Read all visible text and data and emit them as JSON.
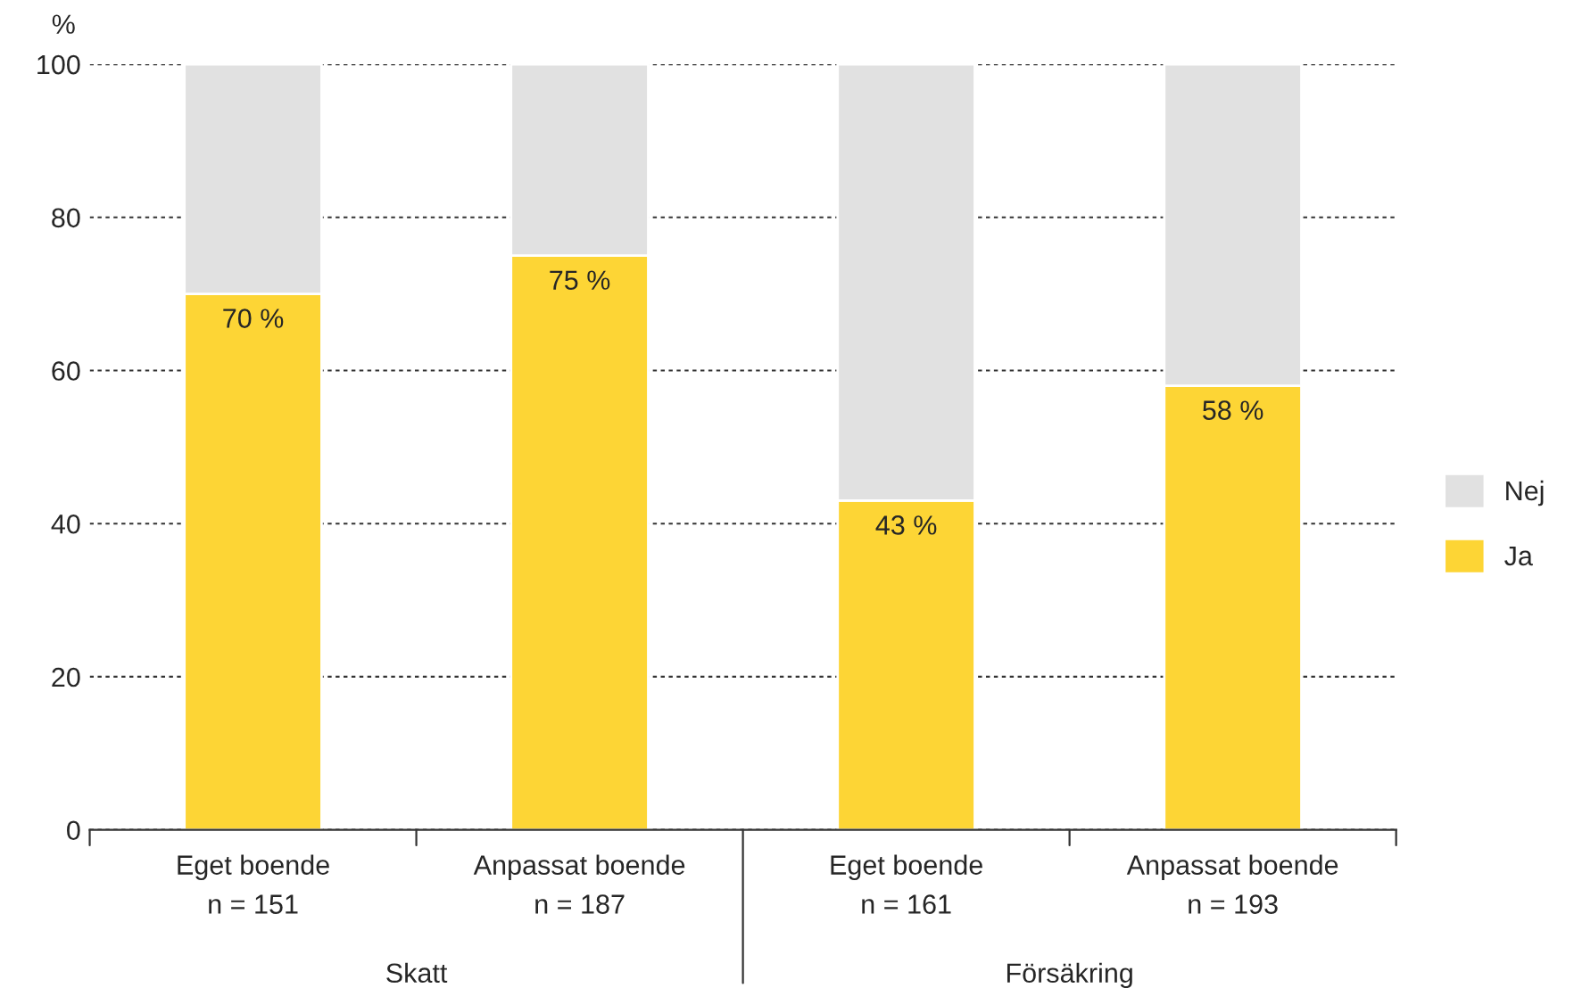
{
  "chart_data": {
    "type": "bar",
    "stacked": true,
    "ylabel": "%",
    "categories": [
      "Eget boende\nn = 151",
      "Anpassat boende\nn = 187",
      "Eget boende\nn = 161",
      "Anpassat boende\nn = 193"
    ],
    "series": [
      {
        "name": "Ja",
        "color": "#fdd535",
        "values": [
          70,
          75,
          43,
          58
        ],
        "value_labels": [
          "70 %",
          "75 %",
          "43 %",
          "58 %"
        ]
      },
      {
        "name": "Nej",
        "color": "#e1e1e1",
        "values": [
          30,
          25,
          57,
          42
        ]
      }
    ],
    "annotations": [
      "Skatt",
      "Försäkring"
    ],
    "ylim": [
      0,
      100
    ],
    "yticks": [
      0,
      20,
      40,
      60,
      80,
      100
    ],
    "grid": "y",
    "legend": "right"
  }
}
